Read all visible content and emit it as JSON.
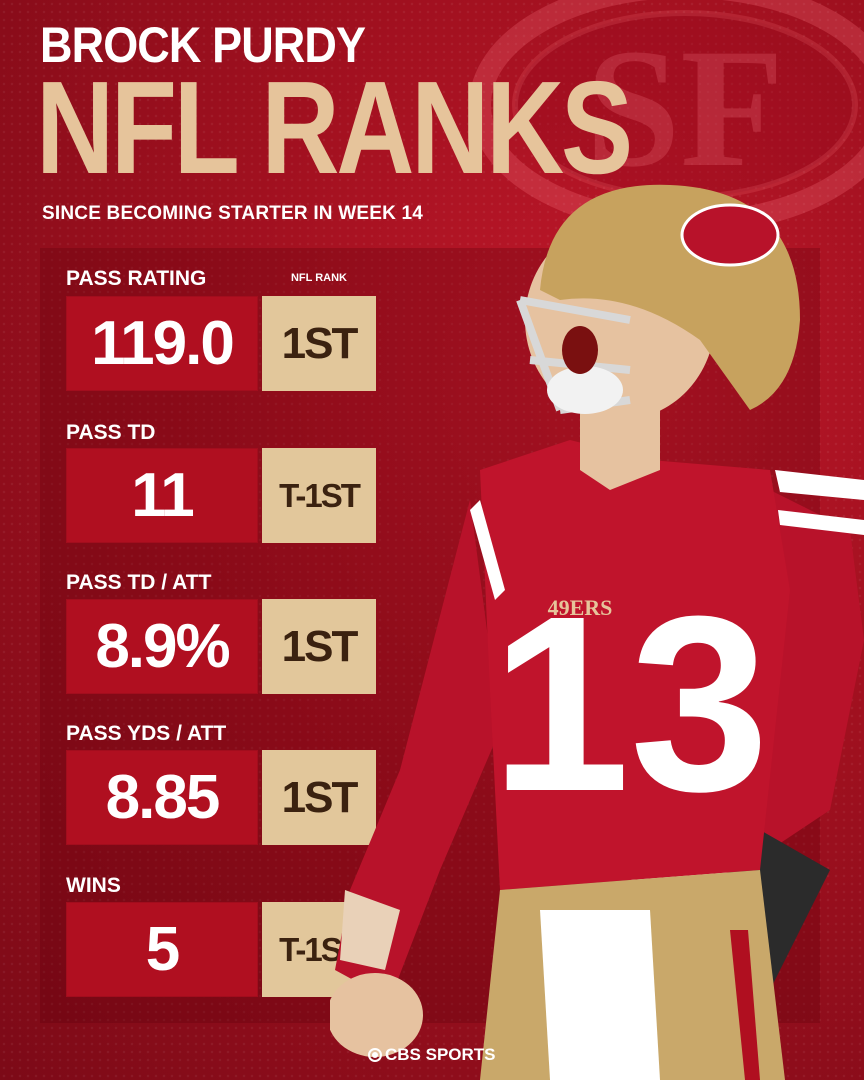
{
  "header": {
    "name": "BROCK PURDY",
    "title": "NFL RANKS",
    "subtitle": "SINCE BECOMING STARTER IN WEEK 14"
  },
  "table": {
    "rank_header": "NFL RANK",
    "rows": [
      {
        "label": "PASS RATING",
        "value": "119.0",
        "rank": "1ST"
      },
      {
        "label": "PASS TD",
        "value": "11",
        "rank": "T-1ST"
      },
      {
        "label": "PASS TD / ATT",
        "value": "8.9%",
        "rank": "1ST"
      },
      {
        "label": "PASS YDS / ATT",
        "value": "8.85",
        "rank": "1ST"
      },
      {
        "label": "WINS",
        "value": "5",
        "rank": "T-1ST"
      }
    ]
  },
  "watermark": {
    "logo_text": "SF",
    "icon": "49ers-logo"
  },
  "player": {
    "jersey_number": "13",
    "jersey_text": "49ERS"
  },
  "footer": {
    "brand": "CBS SPORTS",
    "icon": "cbs-eye-icon"
  },
  "colors": {
    "background": "#a0101f",
    "value_box": "#b00f20",
    "rank_box": "#e2c79b",
    "title_gold": "#e6c49b",
    "rank_text": "#3b2210"
  }
}
